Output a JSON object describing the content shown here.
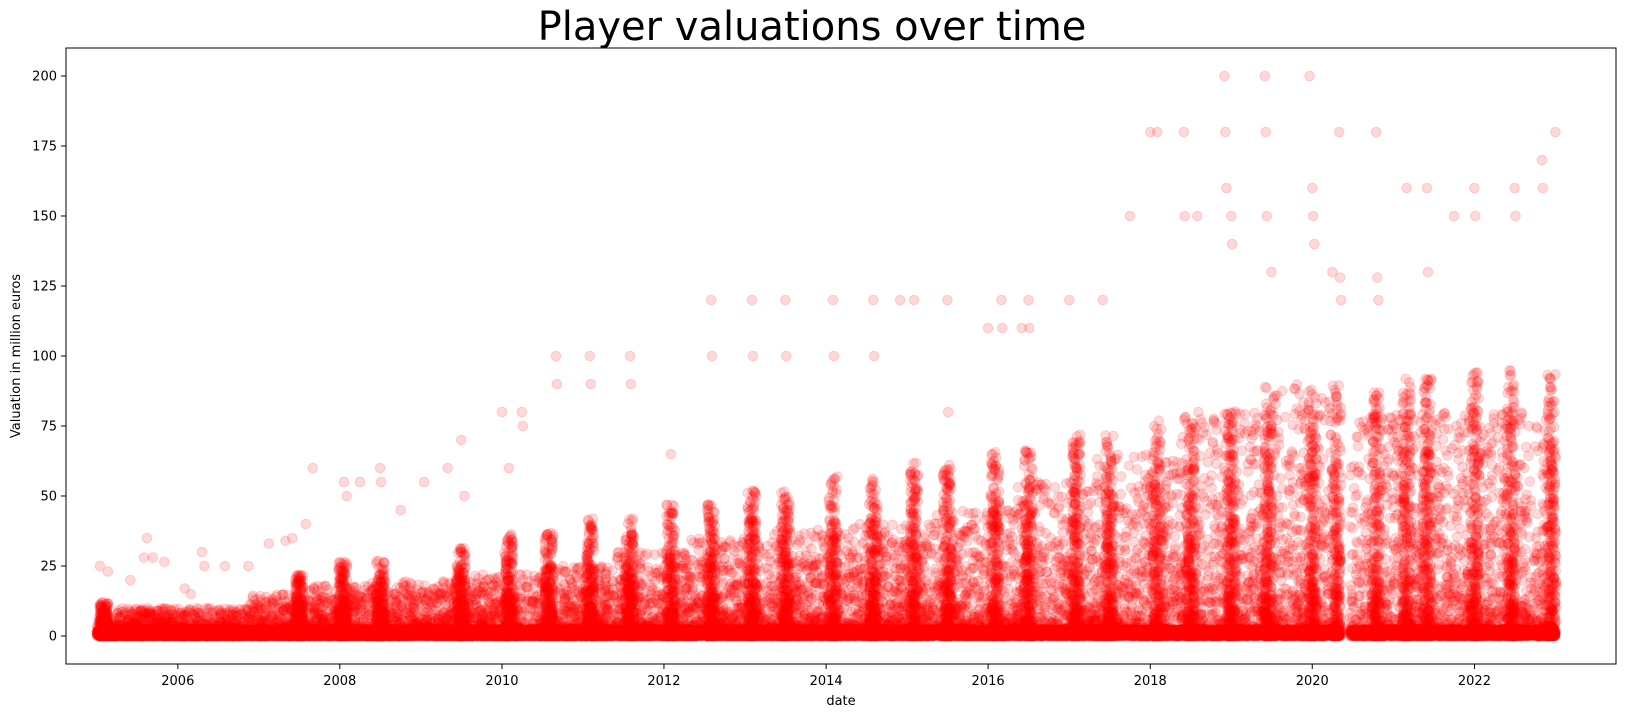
{
  "chart_data": {
    "type": "scatter",
    "title": "Player valuations over time",
    "xlabel": "date",
    "ylabel": "Valuation in million euros",
    "xlim": [
      "2004-08-15",
      "2023-10-01"
    ],
    "ylim": [
      -10,
      210
    ],
    "x_ticks": [
      "2006",
      "2008",
      "2010",
      "2012",
      "2014",
      "2016",
      "2018",
      "2020",
      "2022"
    ],
    "y_ticks": [
      "0",
      "25",
      "50",
      "75",
      "100",
      "125",
      "150",
      "175",
      "200"
    ],
    "grid": false,
    "legend": "none",
    "marker_color": "#ff0000",
    "marker_alpha": 0.15,
    "series": [
      {
        "points": [
          [
            "2005-01-15",
            25
          ],
          [
            "2005-02-20",
            23
          ],
          [
            "2005-06-01",
            20
          ],
          [
            "2005-08-01",
            28
          ],
          [
            "2005-08-15",
            35
          ],
          [
            "2005-09-10",
            28
          ],
          [
            "2005-11-01",
            26.5
          ],
          [
            "2006-02-01",
            17
          ],
          [
            "2006-03-01",
            15
          ],
          [
            "2006-04-20",
            30
          ],
          [
            "2006-05-01",
            25
          ],
          [
            "2006-08-01",
            25
          ],
          [
            "2006-11-15",
            25
          ],
          [
            "2007-02-15",
            33
          ],
          [
            "2007-05-01",
            34
          ],
          [
            "2007-06-01",
            35
          ],
          [
            "2007-08-01",
            40
          ],
          [
            "2007-09-01",
            60
          ],
          [
            "2008-01-20",
            55
          ],
          [
            "2008-02-01",
            50
          ],
          [
            "2008-04-01",
            55
          ],
          [
            "2008-07-01",
            60
          ],
          [
            "2008-07-05",
            55
          ],
          [
            "2008-10-01",
            45
          ],
          [
            "2009-01-15",
            55
          ],
          [
            "2009-05-01",
            60
          ],
          [
            "2009-07-01",
            70
          ],
          [
            "2009-07-15",
            50
          ],
          [
            "2010-01-01",
            80
          ],
          [
            "2010-02-01",
            60
          ],
          [
            "2010-04-01",
            80
          ],
          [
            "2010-04-05",
            75
          ],
          [
            "2010-09-01",
            100
          ],
          [
            "2010-09-05",
            90
          ],
          [
            "2011-02-01",
            100
          ],
          [
            "2011-02-05",
            90
          ],
          [
            "2011-08-01",
            100
          ],
          [
            "2011-08-05",
            90
          ],
          [
            "2012-02-01",
            65
          ],
          [
            "2012-08-01",
            120
          ],
          [
            "2012-08-05",
            100
          ],
          [
            "2013-02-01",
            120
          ],
          [
            "2013-02-05",
            100
          ],
          [
            "2013-07-01",
            120
          ],
          [
            "2013-07-05",
            100
          ],
          [
            "2014-02-01",
            120
          ],
          [
            "2014-02-05",
            100
          ],
          [
            "2014-08-01",
            120
          ],
          [
            "2014-08-05",
            100
          ],
          [
            "2014-12-01",
            120
          ],
          [
            "2015-02-01",
            120
          ],
          [
            "2015-07-01",
            120
          ],
          [
            "2015-07-05",
            80
          ],
          [
            "2016-01-01",
            110
          ],
          [
            "2016-03-01",
            120
          ],
          [
            "2016-03-05",
            110
          ],
          [
            "2016-06-01",
            110
          ],
          [
            "2016-07-01",
            120
          ],
          [
            "2016-07-05",
            110
          ],
          [
            "2017-01-01",
            120
          ],
          [
            "2017-06-01",
            120
          ],
          [
            "2017-10-01",
            150
          ],
          [
            "2018-01-01",
            180
          ],
          [
            "2018-02-01",
            180
          ],
          [
            "2018-06-01",
            180
          ],
          [
            "2018-06-05",
            150
          ],
          [
            "2018-08-01",
            150
          ],
          [
            "2018-12-01",
            200
          ],
          [
            "2018-12-05",
            180
          ],
          [
            "2018-12-10",
            160
          ],
          [
            "2019-01-01",
            150
          ],
          [
            "2019-01-05",
            140
          ],
          [
            "2019-06-01",
            200
          ],
          [
            "2019-06-05",
            180
          ],
          [
            "2019-06-10",
            150
          ],
          [
            "2019-07-01",
            130
          ],
          [
            "2019-12-20",
            200
          ],
          [
            "2020-01-01",
            160
          ],
          [
            "2020-01-05",
            150
          ],
          [
            "2020-01-10",
            140
          ],
          [
            "2020-04-01",
            130
          ],
          [
            "2020-05-01",
            180
          ],
          [
            "2020-05-05",
            128
          ],
          [
            "2020-05-10",
            120
          ],
          [
            "2020-10-15",
            180
          ],
          [
            "2020-10-20",
            128
          ],
          [
            "2020-10-25",
            120
          ],
          [
            "2021-03-01",
            160
          ],
          [
            "2021-06-01",
            160
          ],
          [
            "2021-06-05",
            130
          ],
          [
            "2021-10-01",
            150
          ],
          [
            "2022-01-01",
            160
          ],
          [
            "2022-01-05",
            150
          ],
          [
            "2022-07-01",
            160
          ],
          [
            "2022-07-05",
            150
          ],
          [
            "2022-11-01",
            170
          ],
          [
            "2022-11-05",
            160
          ],
          [
            "2023-01-01",
            180
          ]
        ]
      }
    ],
    "dense_clusters": [
      {
        "start": "2005-01-01",
        "end": "2005-04-01",
        "max": 8
      },
      {
        "start": "2005-04-01",
        "end": "2006-11-15",
        "max": 10
      },
      {
        "start": "2006-11-20",
        "end": "2007-08-15",
        "max": 15
      },
      {
        "start": "2007-08-15",
        "end": "2008-05-01",
        "max": 18
      },
      {
        "start": "2008-05-01",
        "end": "2009-02-01",
        "max": 20
      },
      {
        "start": "2009-02-01",
        "end": "2009-09-01",
        "max": 20
      },
      {
        "start": "2009-09-01",
        "end": "2010-08-01",
        "max": 22
      },
      {
        "start": "2010-08-01",
        "end": "2011-06-01",
        "max": 25
      },
      {
        "start": "2011-06-01",
        "end": "2012-05-01",
        "max": 30
      },
      {
        "start": "2012-05-01",
        "end": "2013-05-01",
        "max": 35
      },
      {
        "start": "2013-05-01",
        "end": "2014-05-01",
        "max": 38
      },
      {
        "start": "2014-05-01",
        "end": "2015-05-01",
        "max": 40
      },
      {
        "start": "2015-05-01",
        "end": "2016-05-01",
        "max": 45
      },
      {
        "start": "2016-05-01",
        "end": "2017-05-01",
        "max": 55
      },
      {
        "start": "2017-05-01",
        "end": "2018-05-01",
        "max": 65
      },
      {
        "start": "2018-05-01",
        "end": "2019-05-01",
        "max": 80
      },
      {
        "start": "2019-05-01",
        "end": "2020-05-01",
        "max": 90
      },
      {
        "start": "2020-06-20",
        "end": "2021-06-01",
        "max": 80
      },
      {
        "start": "2021-06-01",
        "end": "2023-01-01",
        "max": 80
      }
    ],
    "peak_dates": [
      "2005-02-01",
      "2007-07-01",
      "2008-01-15",
      "2008-07-01",
      "2009-07-01",
      "2010-02-01",
      "2010-08-01",
      "2011-02-01",
      "2011-08-01",
      "2012-02-01",
      "2012-08-01",
      "2013-02-01",
      "2013-07-01",
      "2014-02-01",
      "2014-08-01",
      "2015-02-01",
      "2015-07-01",
      "2016-02-01",
      "2016-07-01",
      "2017-02-01",
      "2017-07-01",
      "2018-02-01",
      "2018-07-01",
      "2019-01-01",
      "2019-06-15",
      "2020-01-01",
      "2020-04-20",
      "2020-10-15",
      "2021-03-01",
      "2021-06-01",
      "2022-01-01",
      "2022-06-15",
      "2022-12-15"
    ]
  }
}
